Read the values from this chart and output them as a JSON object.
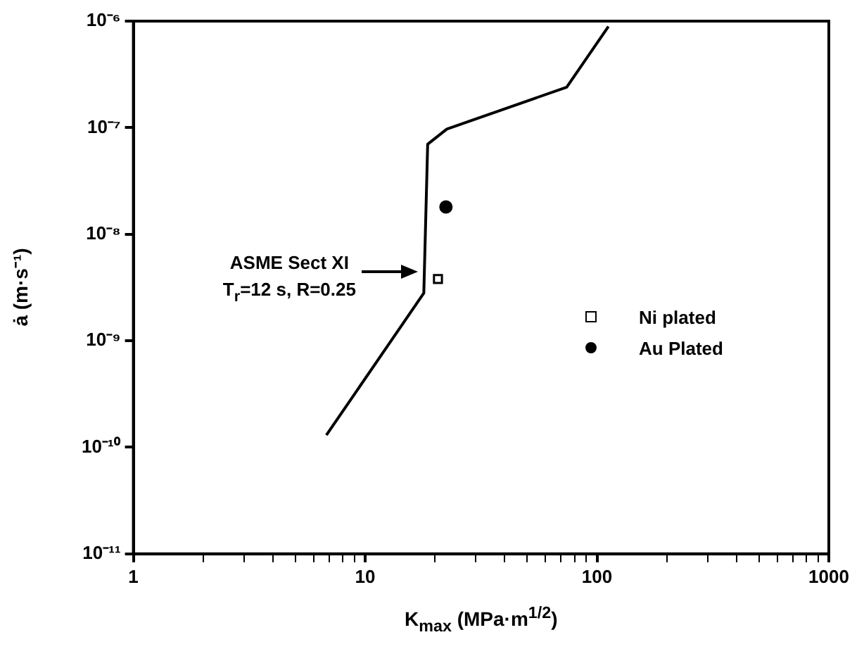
{
  "chart_data": {
    "type": "line",
    "xlabel": "K$_{max}$ (MPa·m$^{1/2}$)",
    "ylabel": "ȧ (m·s⁻¹)",
    "log": "xy",
    "grid": false,
    "legend": "right",
    "xlim": [
      1,
      1000
    ],
    "ylim": [
      1e-11,
      1e-06
    ],
    "xticks": [
      1,
      {
        "value": 2,
        "label": null
      },
      {
        "value": 3,
        "label": null
      },
      {
        "value": 4,
        "label": null
      },
      {
        "value": 5,
        "label": null
      },
      {
        "value": 6,
        "label": null
      },
      {
        "value": 7,
        "label": null
      },
      {
        "value": 8,
        "label": null
      },
      {
        "value": 9,
        "label": null
      },
      10,
      {
        "value": 20,
        "label": null
      },
      {
        "value": 30,
        "label": null
      },
      {
        "value": 40,
        "label": null
      },
      {
        "value": 50,
        "label": null
      },
      {
        "value": 60,
        "label": null
      },
      {
        "value": 70,
        "label": null
      },
      {
        "value": 80,
        "label": null
      },
      {
        "value": 90,
        "label": null
      },
      100,
      {
        "value": 200,
        "label": null
      },
      {
        "value": 300,
        "label": null
      },
      {
        "value": 400,
        "label": null
      },
      {
        "value": 500,
        "label": null
      },
      {
        "value": 600,
        "label": null
      },
      {
        "value": 700,
        "label": null
      },
      {
        "value": 800,
        "label": null
      },
      {
        "value": 900,
        "label": null
      },
      1000
    ],
    "yticks": [
      {
        "value": 1e-11,
        "label": "10⁻¹¹"
      },
      {
        "value": 1e-10,
        "label": "10⁻¹⁰"
      },
      {
        "value": 1e-09,
        "label": "10⁻⁹"
      },
      {
        "value": 1e-08,
        "label": "10⁻⁸"
      },
      {
        "value": 1e-07,
        "label": "10⁻⁷"
      },
      {
        "value": 1e-06,
        "label": "10⁻⁶"
      }
    ],
    "series": [
      {
        "color": "#000000",
        "marker": "none",
        "line_style": "solid",
        "x": [
          6.8,
          17.9,
          18.6,
          22.5,
          74,
          112
        ],
        "values": [
          1.3e-10,
          2.8e-09,
          7e-08,
          9.7e-08,
          2.4e-07,
          8.9e-07
        ]
      },
      {
        "type": "scatter",
        "name": "Ni plated",
        "color": "#000000",
        "marker": "square",
        "x": [
          20.6
        ],
        "values": [
          3.8e-09
        ]
      },
      {
        "type": "scatter",
        "name": "Au Plated",
        "color": "#000000",
        "marker": "circle",
        "x": [
          22.3
        ],
        "values": [
          1.8e-08
        ]
      }
    ],
    "annotations": [
      "ASME Sect XI\nT$_{r}$=12 s, R=0.25"
    ]
  }
}
